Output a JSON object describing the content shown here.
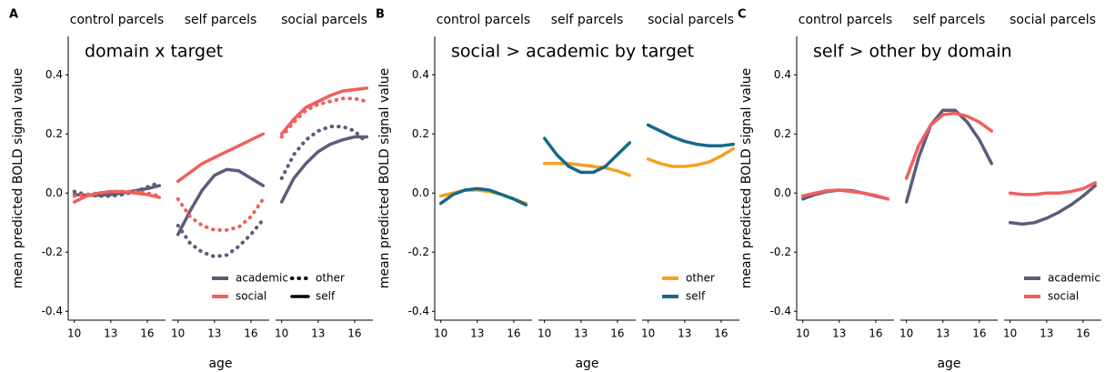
{
  "chart_data": [
    {
      "type": "line",
      "panel": "A",
      "title": "domain x target",
      "xlabel": "age",
      "ylabel": "mean predicted BOLD signal value",
      "x": [
        10,
        11,
        12,
        13,
        14,
        15,
        16,
        17
      ],
      "xlim": [
        9.5,
        17.5
      ],
      "xticks": [
        10,
        13,
        16
      ],
      "ylim": [
        -0.43,
        0.53
      ],
      "yticks": [
        -0.4,
        -0.2,
        {
          "value": 0,
          "label": "0.0"
        },
        0.2,
        0.4
      ],
      "legend": {
        "color": [
          {
            "name": "academic",
            "color": "#5e5b7b"
          },
          {
            "name": "social",
            "color": "#f0605d"
          }
        ],
        "linetype": [
          {
            "name": "other",
            "dashed": true
          },
          {
            "name": "self",
            "dashed": false
          }
        ]
      },
      "facets": [
        {
          "title": "control parcels",
          "series": [
            {
              "color": "#5e5b7b",
              "dashed": false,
              "values": [
                -0.005,
                -0.008,
                -0.008,
                -0.005,
                0.0,
                0.008,
                0.015,
                0.025
              ]
            },
            {
              "color": "#5e5b7b",
              "dashed": true,
              "values": [
                0.005,
                -0.005,
                -0.01,
                -0.01,
                -0.005,
                0.005,
                0.02,
                0.035
              ]
            },
            {
              "color": "#f0605d",
              "dashed": false,
              "values": [
                -0.03,
                -0.01,
                0.0,
                0.005,
                0.005,
                0.0,
                -0.005,
                -0.015
              ]
            },
            {
              "color": "#f0605d",
              "dashed": true,
              "values": [
                -0.01,
                -0.005,
                0.0,
                0.005,
                0.005,
                0.005,
                0.0,
                -0.01
              ]
            }
          ]
        },
        {
          "title": "self parcels",
          "series": [
            {
              "color": "#f0605d",
              "dashed": false,
              "values": [
                0.04,
                0.07,
                0.1,
                0.12,
                0.14,
                0.16,
                0.18,
                0.2
              ]
            },
            {
              "color": "#5e5b7b",
              "dashed": false,
              "values": [
                -0.14,
                -0.06,
                0.01,
                0.06,
                0.08,
                0.075,
                0.05,
                0.025
              ]
            },
            {
              "color": "#f0605d",
              "dashed": true,
              "values": [
                -0.02,
                -0.08,
                -0.11,
                -0.125,
                -0.125,
                -0.115,
                -0.08,
                -0.02
              ]
            },
            {
              "color": "#5e5b7b",
              "dashed": true,
              "values": [
                -0.11,
                -0.17,
                -0.2,
                -0.215,
                -0.21,
                -0.18,
                -0.14,
                -0.09
              ]
            }
          ]
        },
        {
          "title": "social parcels",
          "series": [
            {
              "color": "#f0605d",
              "dashed": false,
              "values": [
                0.2,
                0.25,
                0.29,
                0.31,
                0.33,
                0.345,
                0.35,
                0.355
              ]
            },
            {
              "color": "#f0605d",
              "dashed": true,
              "values": [
                0.19,
                0.24,
                0.28,
                0.3,
                0.31,
                0.32,
                0.32,
                0.31
              ]
            },
            {
              "color": "#5e5b7b",
              "dashed": true,
              "values": [
                0.05,
                0.13,
                0.18,
                0.21,
                0.225,
                0.225,
                0.21,
                0.17
              ]
            },
            {
              "color": "#5e5b7b",
              "dashed": false,
              "values": [
                -0.03,
                0.05,
                0.1,
                0.14,
                0.165,
                0.18,
                0.19,
                0.19
              ]
            }
          ]
        }
      ]
    },
    {
      "type": "line",
      "panel": "B",
      "title": "social > academic by target",
      "xlabel": "age",
      "ylabel": "mean predicted BOLD signal value",
      "x": [
        10,
        11,
        12,
        13,
        14,
        15,
        16,
        17
      ],
      "xlim": [
        9.5,
        17.5
      ],
      "xticks": [
        10,
        13,
        16
      ],
      "ylim": [
        -0.43,
        0.53
      ],
      "yticks": [
        -0.4,
        -0.2,
        {
          "value": 0,
          "label": "0.0"
        },
        0.2,
        0.4
      ],
      "legend": {
        "color": [
          {
            "name": "other",
            "color": "#f5a21d"
          },
          {
            "name": "self",
            "color": "#17688a"
          }
        ]
      },
      "facets": [
        {
          "title": "control parcels",
          "series": [
            {
              "color": "#f5a21d",
              "dashed": false,
              "values": [
                -0.01,
                0.0,
                0.01,
                0.01,
                0.005,
                -0.005,
                -0.02,
                -0.035
              ]
            },
            {
              "color": "#17688a",
              "dashed": false,
              "values": [
                -0.035,
                -0.005,
                0.01,
                0.015,
                0.01,
                -0.005,
                -0.02,
                -0.04
              ]
            }
          ]
        },
        {
          "title": "self parcels",
          "series": [
            {
              "color": "#f5a21d",
              "dashed": false,
              "values": [
                0.1,
                0.1,
                0.1,
                0.095,
                0.09,
                0.085,
                0.075,
                0.06
              ]
            },
            {
              "color": "#17688a",
              "dashed": false,
              "values": [
                0.185,
                0.13,
                0.09,
                0.07,
                0.07,
                0.09,
                0.13,
                0.17
              ]
            }
          ]
        },
        {
          "title": "social parcels",
          "series": [
            {
              "color": "#f5a21d",
              "dashed": false,
              "values": [
                0.115,
                0.1,
                0.09,
                0.09,
                0.095,
                0.105,
                0.125,
                0.15
              ]
            },
            {
              "color": "#17688a",
              "dashed": false,
              "values": [
                0.23,
                0.21,
                0.19,
                0.175,
                0.165,
                0.16,
                0.16,
                0.165
              ]
            }
          ]
        }
      ]
    },
    {
      "type": "line",
      "panel": "C",
      "title": "self > other by domain",
      "xlabel": "age",
      "ylabel": "mean predicted BOLD signal value",
      "x": [
        10,
        11,
        12,
        13,
        14,
        15,
        16,
        17
      ],
      "xlim": [
        9.5,
        17.5
      ],
      "xticks": [
        10,
        13,
        16
      ],
      "ylim": [
        -0.43,
        0.53
      ],
      "yticks": [
        -0.4,
        -0.2,
        {
          "value": 0,
          "label": "0.0"
        },
        0.2,
        0.4
      ],
      "legend": {
        "color": [
          {
            "name": "academic",
            "color": "#5e5b7b"
          },
          {
            "name": "social",
            "color": "#f0605d"
          }
        ]
      },
      "facets": [
        {
          "title": "control parcels",
          "series": [
            {
              "color": "#5e5b7b",
              "dashed": false,
              "values": [
                -0.02,
                -0.005,
                0.005,
                0.01,
                0.008,
                0.0,
                -0.01,
                -0.02
              ]
            },
            {
              "color": "#f0605d",
              "dashed": false,
              "values": [
                -0.01,
                0.0,
                0.008,
                0.01,
                0.005,
                0.0,
                -0.008,
                -0.02
              ]
            }
          ]
        },
        {
          "title": "self parcels",
          "series": [
            {
              "color": "#5e5b7b",
              "dashed": false,
              "values": [
                -0.03,
                0.12,
                0.23,
                0.28,
                0.28,
                0.24,
                0.18,
                0.1
              ]
            },
            {
              "color": "#f0605d",
              "dashed": false,
              "values": [
                0.05,
                0.16,
                0.23,
                0.265,
                0.27,
                0.26,
                0.24,
                0.21
              ]
            }
          ]
        },
        {
          "title": "social parcels",
          "series": [
            {
              "color": "#5e5b7b",
              "dashed": false,
              "values": [
                -0.1,
                -0.105,
                -0.1,
                -0.085,
                -0.065,
                -0.04,
                -0.01,
                0.025
              ]
            },
            {
              "color": "#f0605d",
              "dashed": false,
              "values": [
                0.0,
                -0.005,
                -0.005,
                0.0,
                0.0,
                0.005,
                0.015,
                0.035
              ]
            }
          ]
        }
      ]
    }
  ]
}
